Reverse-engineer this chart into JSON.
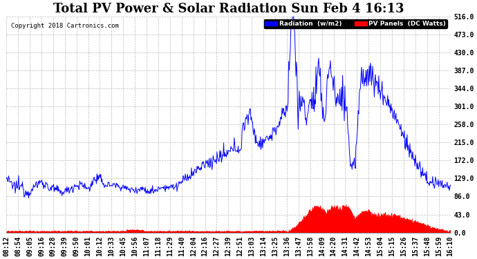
{
  "title": "Total PV Power & Solar Radiation Sun Feb 4 16:13",
  "copyright": "Copyright 2018 Cartronics.com",
  "legend_radiation": "Radiation  (w/m2)",
  "legend_pv": "PV Panels  (DC Watts)",
  "yticks": [
    0.0,
    43.0,
    86.0,
    129.0,
    172.0,
    215.0,
    258.0,
    301.0,
    344.0,
    387.0,
    430.0,
    473.0,
    516.0
  ],
  "ymax": 516.0,
  "ymin": 0.0,
  "background_color": "#ffffff",
  "plot_bg_color": "#ffffff",
  "grid_color": "#bbbbbb",
  "radiation_color": "#0000ff",
  "pv_color": "#ff0000",
  "title_fontsize": 13,
  "tick_fontsize": 7,
  "xtick_labels": [
    "08:12",
    "08:54",
    "09:05",
    "09:16",
    "09:28",
    "09:39",
    "09:50",
    "10:01",
    "10:12",
    "10:33",
    "10:45",
    "10:56",
    "11:07",
    "11:18",
    "11:29",
    "11:40",
    "12:04",
    "12:16",
    "12:27",
    "12:39",
    "12:51",
    "13:03",
    "13:14",
    "13:25",
    "13:36",
    "13:47",
    "13:58",
    "14:09",
    "14:20",
    "14:31",
    "14:42",
    "14:53",
    "15:04",
    "15:15",
    "15:26",
    "15:37",
    "15:48",
    "15:59",
    "16:10"
  ]
}
